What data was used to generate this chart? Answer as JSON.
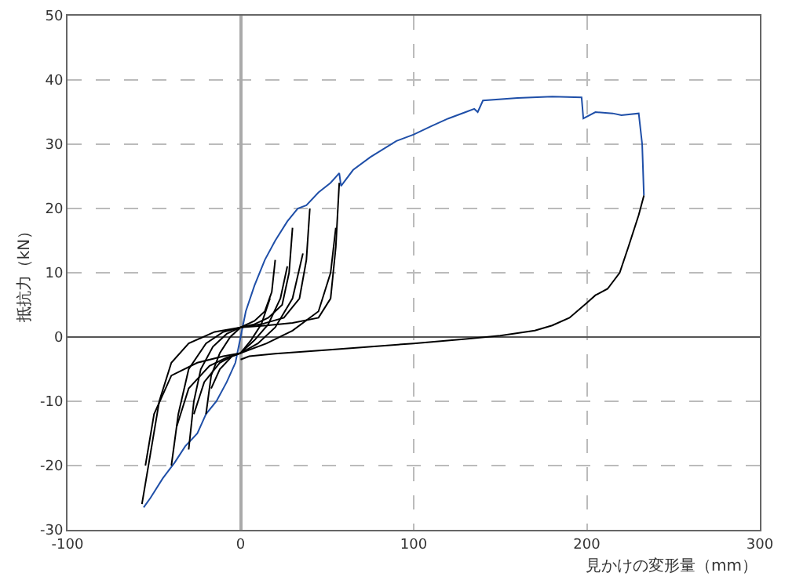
{
  "chart_data": {
    "type": "line",
    "xlabel": "見かけの変形量（mm）",
    "ylabel": "抵抗力（kN）",
    "xlim": [
      -100,
      300
    ],
    "xticks": [
      -100,
      0,
      100,
      200,
      300
    ],
    "ylim": [
      -30,
      50
    ],
    "yticks": [
      -30,
      -20,
      -10,
      0,
      10,
      20,
      30,
      40,
      50
    ],
    "grid": true,
    "line_style": "solid",
    "series": [
      {
        "color": "#1f4fa8",
        "x": [
          -56,
          -52,
          -45,
          -38,
          -32,
          -25,
          -20,
          -14,
          -8,
          -3,
          0,
          3,
          8,
          14,
          20,
          27,
          33,
          38,
          45,
          52,
          57,
          58,
          65,
          75,
          90,
          100,
          110,
          120,
          130,
          135,
          137,
          140,
          160,
          180,
          197,
          198,
          205,
          215,
          220,
          230,
          232,
          233
        ],
        "values": [
          -26.5,
          -25,
          -22,
          -19.5,
          -17,
          -15,
          -12,
          -10,
          -7,
          -4,
          0,
          4,
          8,
          12,
          15,
          18,
          20,
          20.5,
          22.5,
          24,
          25.5,
          23.5,
          26,
          28,
          30.5,
          31.5,
          32.8,
          34,
          35,
          35.5,
          35,
          36.8,
          37.2,
          37.4,
          37.3,
          34,
          35,
          34.8,
          34.5,
          34.8,
          30,
          22
        ]
      },
      {
        "color": "#000000",
        "x": [
          0,
          5,
          20,
          50,
          100,
          130,
          150,
          170,
          180,
          190,
          200,
          205,
          212,
          219,
          224,
          230,
          233
        ],
        "values": [
          -3.5,
          -3,
          -2.6,
          -2,
          -1,
          -0.3,
          0.2,
          1,
          1.8,
          3,
          5.3,
          6.5,
          7.5,
          10,
          14,
          19,
          22
        ]
      },
      {
        "color": "#000000",
        "x": [
          -57,
          -52,
          -47,
          -40,
          -30,
          -15,
          0,
          15,
          30,
          45,
          52,
          55,
          57
        ],
        "values": [
          -26,
          -18,
          -10,
          -4,
          -1,
          0.8,
          1.5,
          1.8,
          2.2,
          3,
          6,
          14,
          24
        ]
      },
      {
        "color": "#000000",
        "x": [
          -55,
          -50,
          -40,
          -25,
          -10,
          0,
          15,
          30,
          45,
          52,
          55
        ],
        "values": [
          -20,
          -12,
          -6,
          -4,
          -3,
          -2.5,
          -1,
          1,
          4,
          10,
          17
        ]
      },
      {
        "color": "#000000",
        "x": [
          -40,
          -36,
          -30,
          -20,
          -10,
          0,
          12,
          25,
          34,
          38,
          40
        ],
        "values": [
          -20,
          -12,
          -5,
          -1,
          0.8,
          1.5,
          2,
          3,
          6,
          12,
          20
        ]
      },
      {
        "color": "#000000",
        "x": [
          -37,
          -30,
          -18,
          -8,
          0,
          10,
          20,
          30,
          36
        ],
        "values": [
          -14,
          -8,
          -4.5,
          -3.2,
          -2.5,
          -1,
          1.5,
          6,
          13
        ]
      },
      {
        "color": "#000000",
        "x": [
          -30,
          -27,
          -23,
          -16,
          -8,
          0,
          8,
          16,
          24,
          28,
          30
        ],
        "values": [
          -17.5,
          -10,
          -5,
          -1.5,
          0.5,
          1.5,
          2,
          3,
          5,
          10,
          17
        ]
      },
      {
        "color": "#000000",
        "x": [
          -27,
          -21,
          -12,
          -5,
          0,
          8,
          16,
          23,
          27
        ],
        "values": [
          -12,
          -7,
          -4,
          -3,
          -2.5,
          -0.5,
          2,
          6,
          11
        ]
      },
      {
        "color": "#000000",
        "x": [
          -20,
          -17,
          -12,
          -6,
          0,
          8,
          14,
          18,
          20
        ],
        "values": [
          -12,
          -6,
          -2.5,
          0,
          1.5,
          2.5,
          4,
          7,
          12
        ]
      },
      {
        "color": "#000000",
        "x": [
          -17,
          -12,
          -5,
          0,
          6,
          12,
          17
        ],
        "values": [
          -8,
          -5,
          -3,
          -2.5,
          -0.5,
          2,
          6
        ]
      }
    ]
  }
}
